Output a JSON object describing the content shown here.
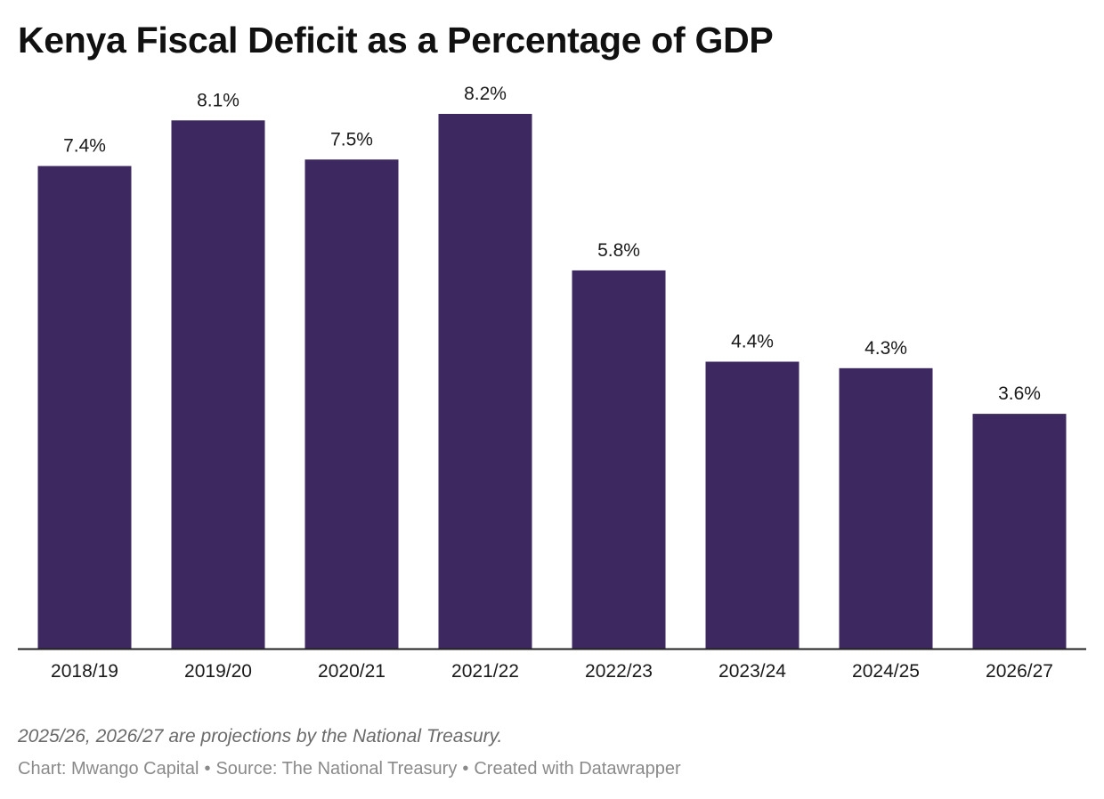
{
  "chart_data": {
    "type": "bar",
    "title": "Kenya Fiscal Deficit as a Percentage of GDP",
    "categories": [
      "2018/19",
      "2019/20",
      "2020/21",
      "2021/22",
      "2022/23",
      "2023/24",
      "2024/25",
      "2026/27"
    ],
    "values": [
      7.4,
      8.1,
      7.5,
      8.2,
      5.8,
      4.4,
      4.3,
      3.6
    ],
    "value_labels": [
      "7.4%",
      "8.1%",
      "7.5%",
      "8.2%",
      "5.8%",
      "4.4%",
      "4.3%",
      "3.6%"
    ],
    "unit": "%",
    "ylim": [
      0,
      8.2
    ],
    "xlabel": "",
    "ylabel": "",
    "grid": false,
    "bar_color": "#3d2860",
    "axis_color": "#222222"
  },
  "footer": {
    "note": "2025/26, 2026/27 are projections by the National Treasury.",
    "chart_credit": "Chart: Mwango Capital",
    "source": "Source: The National Treasury",
    "created_with": "Created with Datawrapper",
    "separator": "•"
  }
}
